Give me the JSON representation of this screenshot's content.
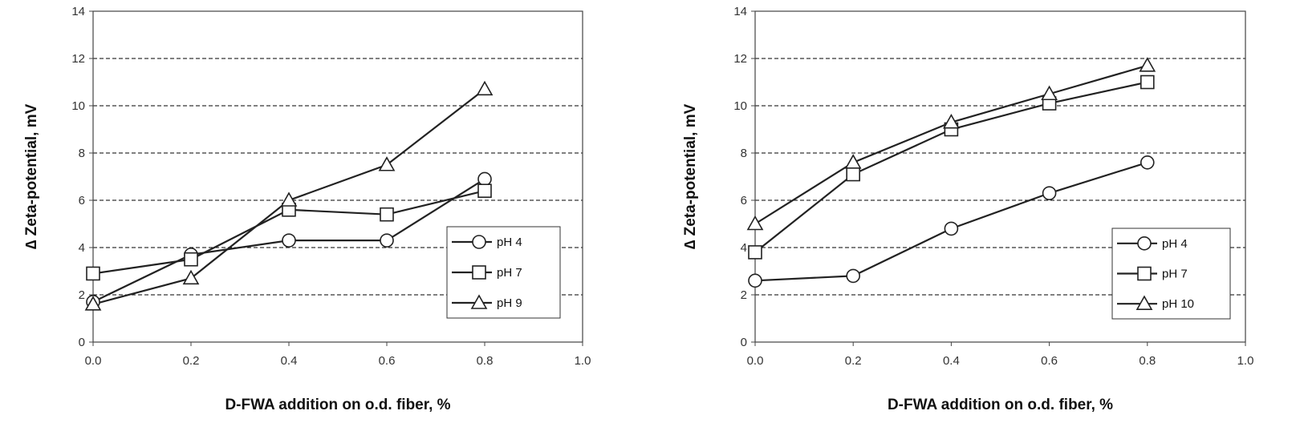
{
  "chart_data": [
    {
      "type": "line",
      "title": "",
      "xlabel": "D-FWA addition on o.d. fiber, %",
      "ylabel": "∆ Zeta-potential,  mV",
      "xlim": [
        0,
        1.0
      ],
      "ylim": [
        0,
        14
      ],
      "xticks": [
        "0.0",
        "0.2",
        "0.4",
        "0.6",
        "0.8",
        "1.0"
      ],
      "yticks": [
        "0",
        "2",
        "4",
        "6",
        "8",
        "10",
        "12",
        "14"
      ],
      "grid": "horizontal-dashed",
      "legend_position": "lower-right",
      "series": [
        {
          "name": "pH 4",
          "marker": "circle",
          "x": [
            0.0,
            0.2,
            0.4,
            0.6,
            0.8
          ],
          "y": [
            1.7,
            3.7,
            4.3,
            4.3,
            6.9
          ]
        },
        {
          "name": "pH 7",
          "marker": "square",
          "x": [
            0.0,
            0.2,
            0.4,
            0.6,
            0.8
          ],
          "y": [
            2.9,
            3.5,
            5.6,
            5.4,
            6.4
          ]
        },
        {
          "name": "pH 9",
          "marker": "triangle",
          "x": [
            0.0,
            0.2,
            0.4,
            0.6,
            0.8
          ],
          "y": [
            1.6,
            2.7,
            6.0,
            7.5,
            10.7
          ]
        }
      ]
    },
    {
      "type": "line",
      "title": "",
      "xlabel": "D-FWA addition on o.d. fiber, %",
      "ylabel": "∆ Zeta-potential,  mV",
      "xlim": [
        0,
        1.0
      ],
      "ylim": [
        0,
        14
      ],
      "xticks": [
        "0.0",
        "0.2",
        "0.4",
        "0.6",
        "0.8",
        "1.0"
      ],
      "yticks": [
        "0",
        "2",
        "4",
        "6",
        "8",
        "10",
        "12",
        "14"
      ],
      "grid": "horizontal-dashed",
      "legend_position": "lower-right",
      "series": [
        {
          "name": "pH 4",
          "marker": "circle",
          "x": [
            0.0,
            0.2,
            0.4,
            0.6,
            0.8
          ],
          "y": [
            2.6,
            2.8,
            4.8,
            6.3,
            7.6
          ]
        },
        {
          "name": "pH 7",
          "marker": "square",
          "x": [
            0.0,
            0.2,
            0.4,
            0.6,
            0.8
          ],
          "y": [
            3.8,
            7.1,
            9.0,
            10.1,
            11.0
          ]
        },
        {
          "name": "pH 10",
          "marker": "triangle",
          "x": [
            0.0,
            0.2,
            0.4,
            0.6,
            0.8
          ],
          "y": [
            5.0,
            7.6,
            9.3,
            10.5,
            11.7
          ]
        }
      ]
    }
  ]
}
